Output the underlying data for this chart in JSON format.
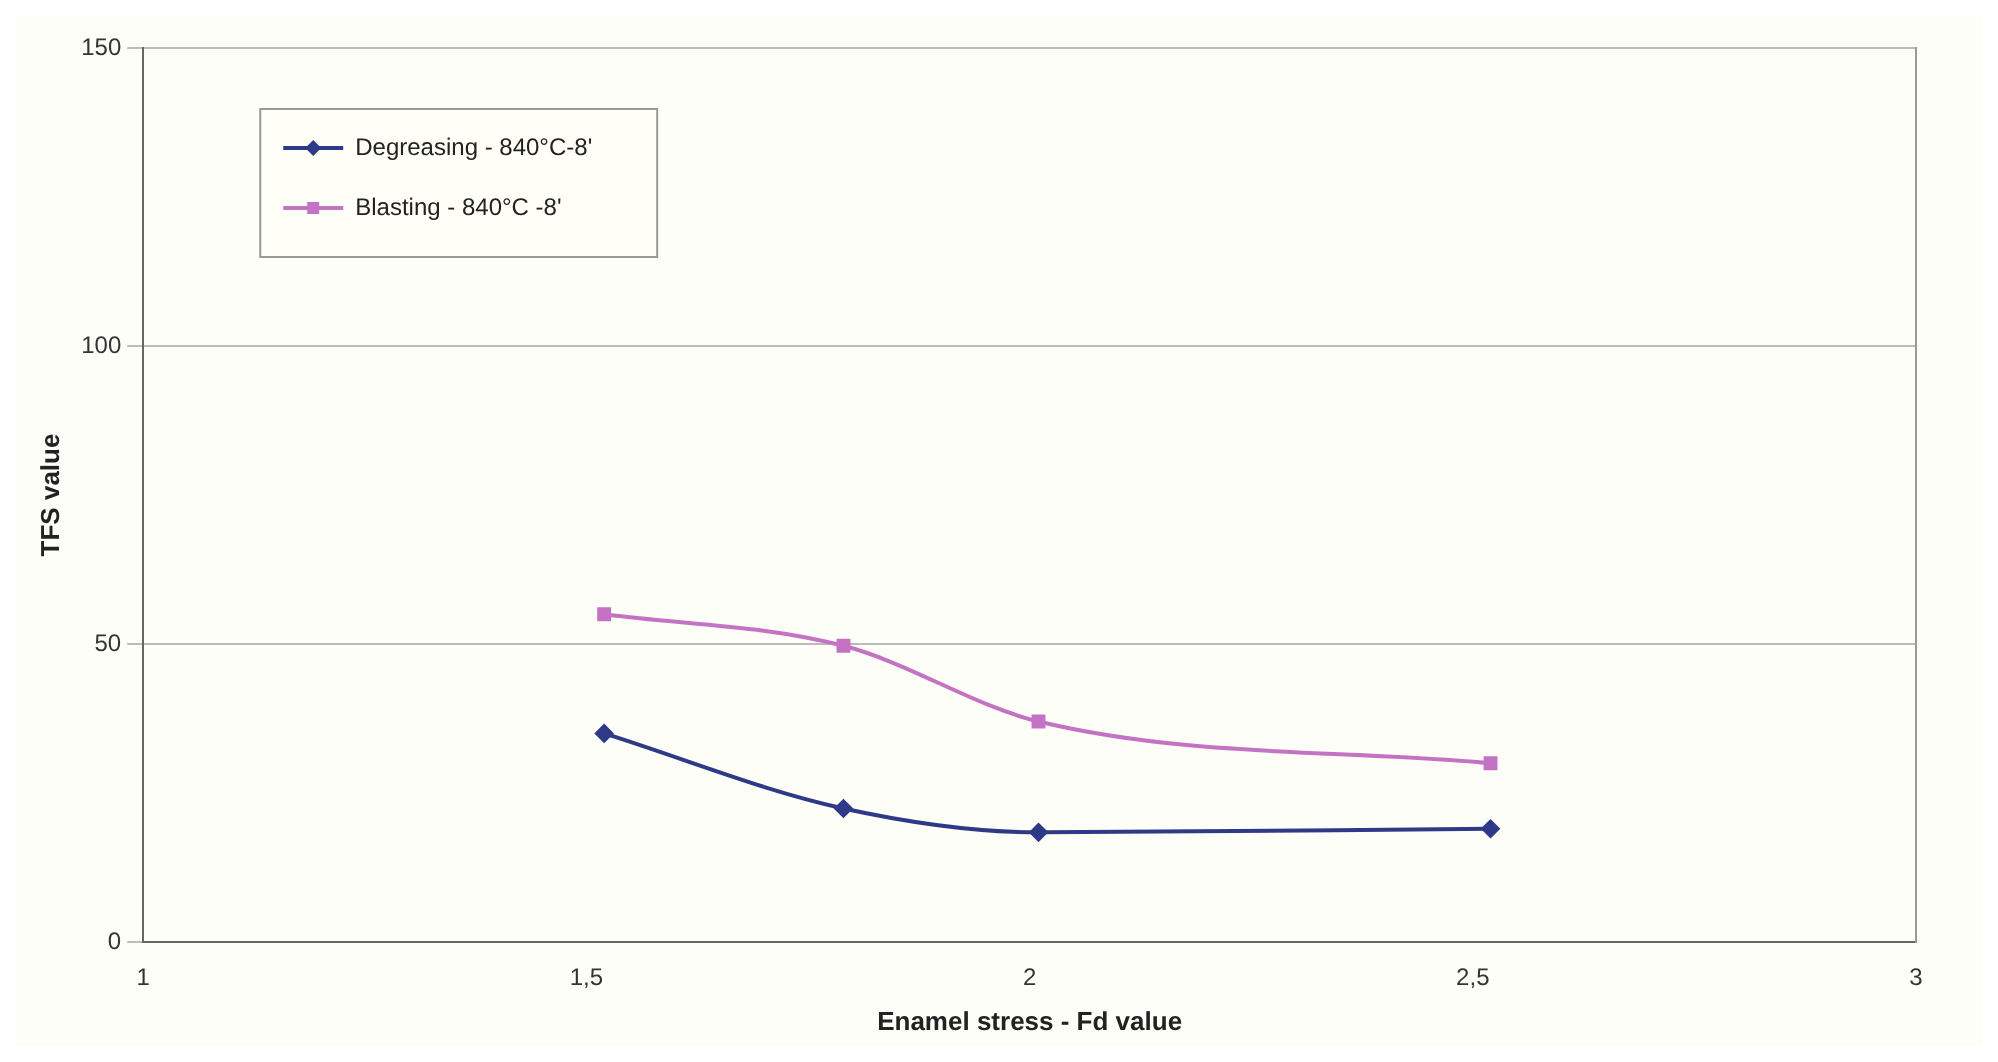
{
  "chart_data": {
    "type": "line",
    "xlabel": "Enamel stress - Fd value",
    "ylabel": "TFS value",
    "xlim": [
      1,
      3
    ],
    "xticks": [
      1,
      {
        "value": 1.5,
        "label": "1,5"
      },
      2,
      {
        "value": 2.5,
        "label": "2,5"
      },
      3
    ],
    "ylim": [
      0,
      150
    ],
    "yticks": [
      0,
      50,
      100,
      150
    ],
    "grid": "y",
    "legend": "top left",
    "series": [
      {
        "name": "Degreasing - 840°C-8'",
        "color": "#2e3a87",
        "marker": "diamond",
        "x": [
          1.52,
          1.79,
          2.01,
          2.52
        ],
        "values": [
          35,
          22.4,
          18.4,
          19
        ]
      },
      {
        "name": "Blasting - 840°C -8'",
        "color": "#c472c4",
        "marker": "square",
        "x": [
          1.52,
          1.79,
          2.01,
          2.52
        ],
        "values": [
          55,
          49.7,
          37,
          30
        ]
      }
    ]
  }
}
